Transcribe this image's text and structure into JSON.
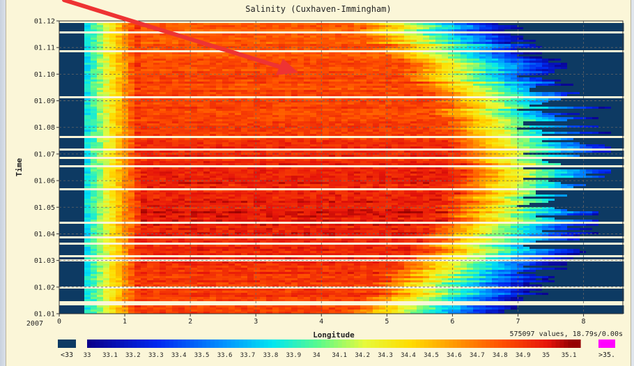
{
  "chart_data": {
    "type": "heatmap",
    "title": "Salinity (Cuxhaven-Immingham)",
    "xlabel": "Longitude",
    "ylabel": "Time",
    "xlim": [
      0,
      8.6
    ],
    "y_ticks": [
      "01.01",
      "01.02",
      "01.03",
      "01.04",
      "01.05",
      "01.06",
      "01.07",
      "01.08",
      "01.09",
      "01.10",
      "01.11",
      "01.12"
    ],
    "y_origin_label": "2007",
    "x_ticks": [
      "0",
      "1",
      "2",
      "3",
      "4",
      "5",
      "6",
      "7",
      "8"
    ],
    "grid": true,
    "info_text": "575097 values, 18.79s/0.00s",
    "colorbar": {
      "under_label": "<33",
      "over_label": ">35.",
      "labels": [
        "33",
        "33.1",
        "33.2",
        "33.3",
        "33.4",
        "33.5",
        "33.6",
        "33.7",
        "33.8",
        "33.9",
        "34",
        "34.1",
        "34.2",
        "34.3",
        "34.4",
        "34.5",
        "34.6",
        "34.7",
        "34.8",
        "34.9",
        "35",
        "35.1"
      ],
      "under_color": "#0d3a63",
      "over_color": "#ff00ff"
    },
    "annotation": "red-arrow"
  }
}
